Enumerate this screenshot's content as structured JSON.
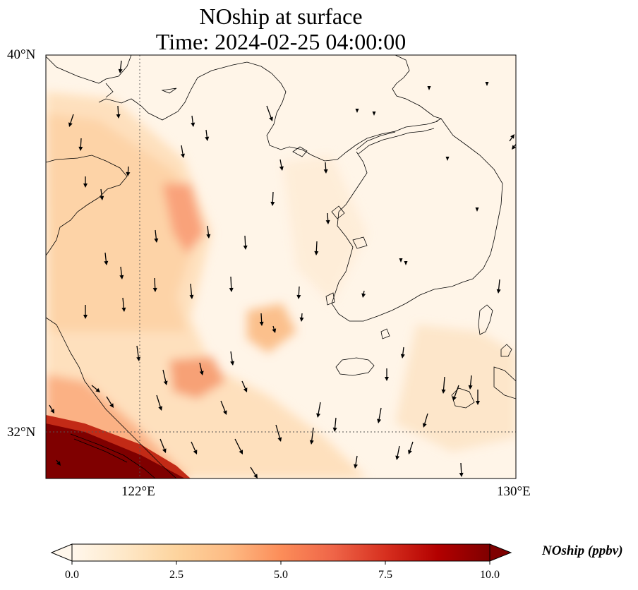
{
  "title": {
    "line1": "NOship at surface",
    "line2": "Time: 2024-02-25 04:00:00"
  },
  "axes": {
    "lat_labels": [
      "40°N",
      "32°N"
    ],
    "lon_labels": [
      "122°E",
      "130°E"
    ],
    "lat_range": [
      31,
      40
    ],
    "lon_range": [
      120,
      130
    ]
  },
  "colorbar": {
    "label": "NOship (ppbv)",
    "ticks": [
      "0.0",
      "2.5",
      "5.0",
      "7.5",
      "10.0"
    ],
    "range": [
      0,
      10
    ],
    "extend": "both",
    "colormap": "OrRd",
    "colors": [
      "#fff7ec",
      "#fee8c8",
      "#fdd49e",
      "#fdbb84",
      "#fc8d59",
      "#ef6548",
      "#d7301f",
      "#b30000",
      "#7f0000"
    ]
  },
  "field": {
    "variable": "NOship",
    "units": "ppbv",
    "level": "surface",
    "wind_vectors": true
  }
}
